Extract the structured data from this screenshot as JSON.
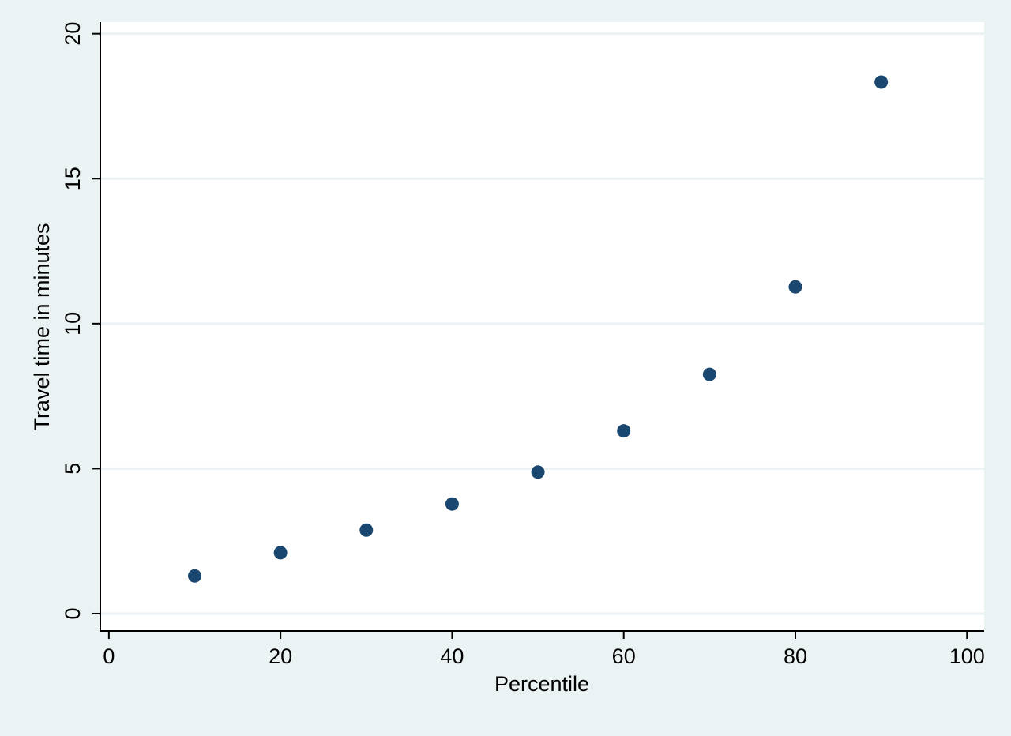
{
  "chart_data": {
    "type": "scatter",
    "title": "",
    "xlabel": "Percentile",
    "ylabel": "Travel time in minutes",
    "xlim": [
      -1,
      102
    ],
    "ylim": [
      -0.6,
      20.4
    ],
    "xticks": [
      0,
      20,
      40,
      60,
      80,
      100
    ],
    "xtick_labels": [
      "0",
      "20",
      "40",
      "60",
      "80",
      "100"
    ],
    "yticks": [
      0,
      5,
      10,
      15,
      20
    ],
    "ytick_labels": [
      "0",
      "5",
      "10",
      "15",
      "20"
    ],
    "grid": "horizontal",
    "legend": "none",
    "series": [
      {
        "x": [
          10,
          20,
          30,
          40,
          50,
          60,
          70,
          80,
          90
        ],
        "y": [
          1.3,
          2.1,
          2.88,
          3.78,
          4.88,
          6.3,
          8.25,
          11.27,
          18.33
        ]
      }
    ],
    "colors": {
      "background": "#eaf2f3",
      "plot_area": "#ffffff",
      "gridline": "#eaf2f3",
      "marker": "#1a476f",
      "axis": "#000000"
    }
  }
}
